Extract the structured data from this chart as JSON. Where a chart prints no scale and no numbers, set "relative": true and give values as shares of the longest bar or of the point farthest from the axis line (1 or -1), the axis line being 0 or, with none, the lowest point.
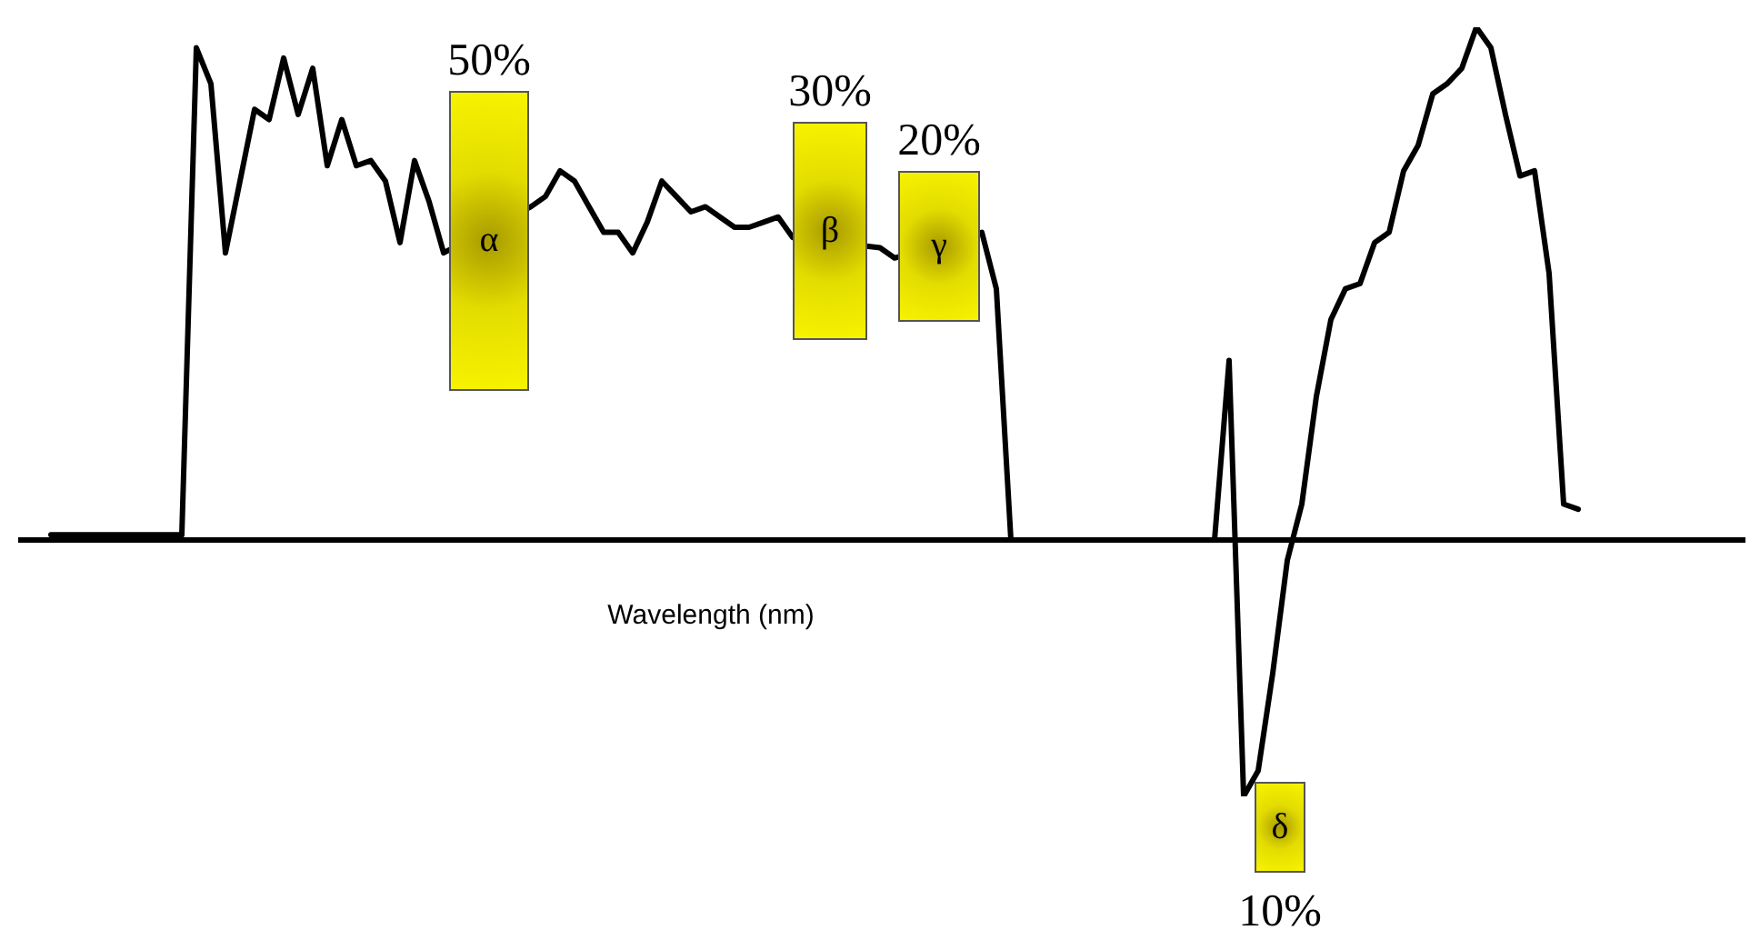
{
  "chart_data": {
    "type": "line",
    "relative": true,
    "xlabel": "Wavelength (nm)",
    "categories": [
      null,
      null,
      null,
      null,
      null,
      null,
      null,
      null,
      null,
      null,
      null,
      null,
      null,
      null,
      null,
      null,
      null,
      null,
      null,
      null,
      null,
      null,
      null,
      null,
      null,
      null,
      null,
      null,
      null,
      null,
      null,
      null,
      null,
      null,
      null,
      null,
      null,
      null,
      null,
      null,
      null,
      null,
      null,
      null,
      null,
      null,
      null,
      null,
      null,
      null,
      null,
      null,
      null,
      null,
      null,
      null,
      null,
      null,
      null,
      null,
      null,
      null,
      null,
      null,
      null,
      null,
      null,
      null,
      null,
      null,
      null,
      null,
      null,
      null,
      null,
      null,
      null,
      null,
      null,
      null,
      null,
      null,
      null,
      null,
      null,
      null,
      null,
      null,
      null,
      null,
      null,
      null,
      null,
      null,
      null,
      null,
      null,
      null,
      null,
      null,
      null,
      null,
      null,
      null,
      null,
      null
    ],
    "series": [
      {
        "color": "#000000",
        "values": [
          0.01,
          0.01,
          0.01,
          0.01,
          0.01,
          0.01,
          0.01,
          0.01,
          0.01,
          0.01,
          0.96,
          0.89,
          0.56,
          0.7,
          0.84,
          0.82,
          0.94,
          0.83,
          0.92,
          0.73,
          0.82,
          0.73,
          0.74,
          0.7,
          0.58,
          0.74,
          0.66,
          0.56,
          null,
          null,
          null,
          null,
          null,
          0.65,
          0.67,
          0.72,
          0.7,
          0.65,
          0.6,
          0.6,
          0.56,
          0.62,
          0.7,
          0.67,
          0.64,
          0.65,
          0.63,
          0.61,
          0.61,
          0.62,
          0.63,
          0.59,
          null,
          null,
          null,
          null,
          null,
          0.57,
          0.55,
          null,
          null,
          null,
          null,
          null,
          0.6,
          0.49,
          0,
          0,
          0,
          0,
          0,
          0,
          0,
          0,
          0,
          0,
          0,
          0,
          0,
          0,
          0,
          0.35,
          -0.5,
          -0.45,
          -0.26,
          -0.04,
          0.07,
          0.28,
          0.43,
          0.49,
          0.5,
          0.58,
          0.6,
          0.72,
          0.77,
          0.87,
          0.89,
          0.92,
          1,
          0.96,
          0.83,
          0.71,
          0.72,
          0.52,
          0.07,
          0.06
        ]
      }
    ],
    "annotations": [
      "50%",
      "α",
      "30%",
      "β",
      "20%",
      "γ",
      "10%",
      "δ"
    ]
  }
}
